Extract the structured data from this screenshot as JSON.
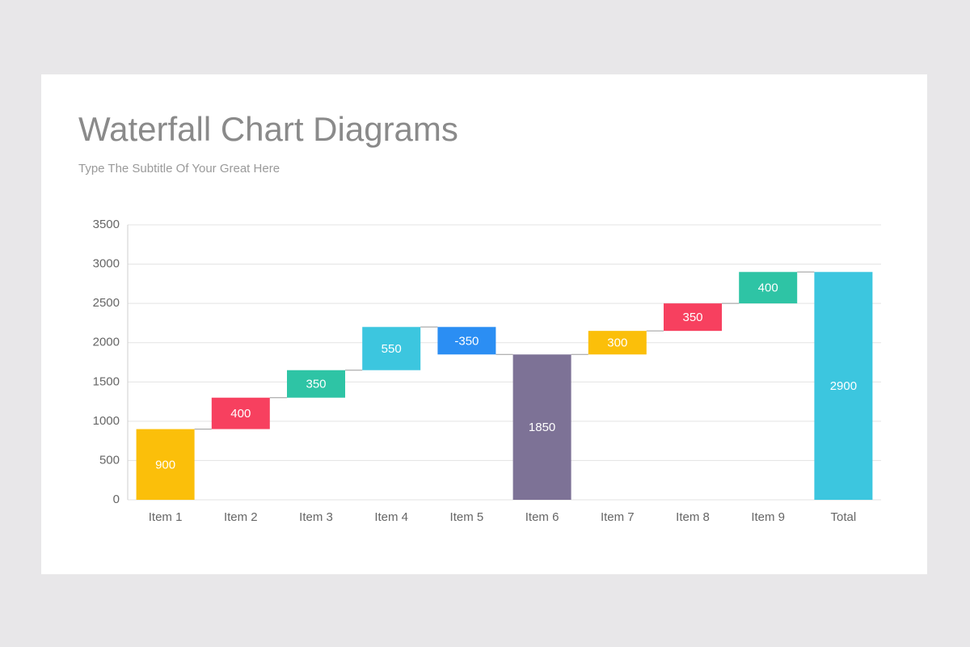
{
  "chart_data": {
    "type": "waterfall",
    "title": "Waterfall Chart Diagrams",
    "subtitle": "Type The Subtitle Of Your Great Here",
    "categories": [
      "Item 1",
      "Item 2",
      "Item 3",
      "Item 4",
      "Item 5",
      "Item 6",
      "Item 7",
      "Item 8",
      "Item 9",
      "Total"
    ],
    "values": [
      900,
      400,
      350,
      550,
      -350,
      1850,
      300,
      350,
      400,
      2900
    ],
    "colors": [
      "#fbbf0a",
      "#f7405f",
      "#2ec4a5",
      "#3cc6df",
      "#2b8ef3",
      "#7d7296",
      "#fbbf0a",
      "#f7405f",
      "#2ec4a5",
      "#3cc6df"
    ],
    "ylim": [
      0,
      3500
    ],
    "yticks": [
      0,
      500,
      1000,
      1500,
      2000,
      2500,
      3000,
      3500
    ],
    "grid": true
  }
}
